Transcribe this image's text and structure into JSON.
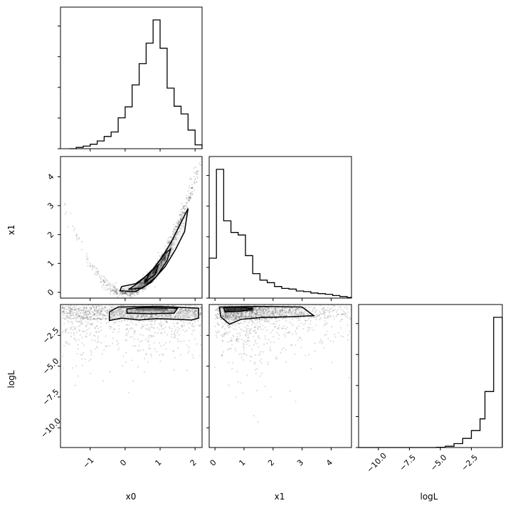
{
  "figure": {
    "type": "corner plot",
    "variables": [
      "x0",
      "x1",
      "logL"
    ]
  },
  "chart_data": [
    {
      "type": "bar",
      "panel": "hist-x0",
      "xlim": [
        -1.85,
        2.2
      ],
      "ylim": [
        0,
        1.0
      ],
      "bins": [
        [
          -1.6,
          0.0
        ],
        [
          -1.4,
          0.01
        ],
        [
          -1.2,
          0.02
        ],
        [
          -1.0,
          0.035
        ],
        [
          -0.8,
          0.06
        ],
        [
          -0.6,
          0.095
        ],
        [
          -0.4,
          0.13
        ],
        [
          -0.2,
          0.24
        ],
        [
          0.0,
          0.325
        ],
        [
          0.2,
          0.495
        ],
        [
          0.4,
          0.66
        ],
        [
          0.6,
          0.82
        ],
        [
          0.8,
          1.0
        ],
        [
          1.0,
          0.78
        ],
        [
          1.2,
          0.47
        ],
        [
          1.4,
          0.33
        ],
        [
          1.6,
          0.27
        ],
        [
          1.8,
          0.145
        ],
        [
          2.0,
          0.03
        ]
      ],
      "bin_width": 0.2,
      "xticks": [
        -1,
        0,
        1,
        2
      ]
    },
    {
      "type": "bar",
      "panel": "hist-x1",
      "xlim": [
        -0.2,
        4.7
      ],
      "ylim": [
        0,
        1.0
      ],
      "bins": [
        [
          -0.2,
          0.31
        ],
        [
          0.05,
          1.0
        ],
        [
          0.3,
          0.6
        ],
        [
          0.55,
          0.51
        ],
        [
          0.8,
          0.49
        ],
        [
          1.05,
          0.33
        ],
        [
          1.3,
          0.19
        ],
        [
          1.55,
          0.14
        ],
        [
          1.8,
          0.12
        ],
        [
          2.05,
          0.09
        ],
        [
          2.3,
          0.075
        ],
        [
          2.55,
          0.07
        ],
        [
          2.8,
          0.055
        ],
        [
          3.05,
          0.05
        ],
        [
          3.3,
          0.04
        ],
        [
          3.55,
          0.035
        ],
        [
          3.8,
          0.03
        ],
        [
          4.05,
          0.02
        ],
        [
          4.3,
          0.012
        ],
        [
          4.55,
          0.005
        ]
      ],
      "bin_width": 0.25,
      "xticks": [
        0,
        1,
        2,
        3,
        4
      ]
    },
    {
      "type": "bar",
      "panel": "hist-logL",
      "xlim": [
        -11.6,
        0.0
      ],
      "ylim": [
        0,
        1.0
      ],
      "bins": [
        [
          -11.6,
          0.0
        ],
        [
          -10.9,
          0.0
        ],
        [
          -10.2,
          0.0
        ],
        [
          -9.5,
          0.0
        ],
        [
          -8.8,
          0.0
        ],
        [
          -8.1,
          0.0
        ],
        [
          -7.4,
          0.0
        ],
        [
          -6.7,
          0.0
        ],
        [
          -6.0,
          0.0
        ],
        [
          -5.3,
          0.002
        ],
        [
          -4.6,
          0.01
        ],
        [
          -3.9,
          0.03
        ],
        [
          -3.2,
          0.07
        ],
        [
          -2.5,
          0.13
        ],
        [
          -1.8,
          0.22
        ],
        [
          -1.4,
          0.43
        ],
        [
          -0.7,
          1.0
        ]
      ],
      "xticks": [
        -10.0,
        -7.5,
        -5.0,
        -2.5
      ]
    },
    {
      "type": "scatter",
      "panel": "x0-vs-x1",
      "xlim": [
        -1.85,
        2.2
      ],
      "ylim": [
        -0.2,
        4.7
      ],
      "curve": "x1 ≈ x0^2",
      "xticks": [
        -1,
        0,
        1,
        2
      ],
      "yticks": [
        0,
        1,
        2,
        3,
        4
      ],
      "contours": [
        [
          [
            -0.15,
            0.05
          ],
          [
            0.3,
            0.03
          ],
          [
            0.75,
            0.35
          ],
          [
            1.15,
            0.9
          ],
          [
            1.45,
            1.5
          ],
          [
            1.7,
            2.1
          ],
          [
            1.8,
            2.9
          ],
          [
            1.55,
            2.3
          ],
          [
            1.3,
            1.7
          ],
          [
            1.05,
            1.2
          ],
          [
            0.7,
            0.65
          ],
          [
            0.3,
            0.3
          ],
          [
            -0.1,
            0.2
          ],
          [
            -0.15,
            0.05
          ]
        ],
        [
          [
            0.1,
            0.1
          ],
          [
            0.5,
            0.15
          ],
          [
            0.9,
            0.55
          ],
          [
            1.2,
            1.1
          ],
          [
            1.3,
            1.5
          ],
          [
            1.1,
            1.3
          ],
          [
            0.8,
            0.8
          ],
          [
            0.4,
            0.35
          ],
          [
            0.1,
            0.1
          ]
        ],
        [
          [
            0.55,
            0.35
          ],
          [
            0.85,
            0.6
          ],
          [
            0.95,
            0.95
          ],
          [
            0.75,
            0.75
          ],
          [
            0.55,
            0.35
          ]
        ]
      ]
    },
    {
      "type": "scatter",
      "panel": "x0-vs-logL",
      "xlim": [
        -1.85,
        2.2
      ],
      "ylim": [
        -11.6,
        0.0
      ],
      "xticks": [
        -1,
        0,
        1,
        2
      ],
      "yticks": [
        -10.0,
        -7.5,
        -5.0,
        -2.5
      ],
      "contours": [
        [
          [
            -0.45,
            -1.3
          ],
          [
            -0.1,
            -1.1
          ],
          [
            0.4,
            -1.25
          ],
          [
            0.9,
            -1.15
          ],
          [
            1.4,
            -1.2
          ],
          [
            1.9,
            -1.25
          ],
          [
            2.1,
            -1.1
          ],
          [
            2.1,
            -0.3
          ],
          [
            1.0,
            -0.15
          ],
          [
            -0.2,
            -0.2
          ],
          [
            -0.45,
            -0.6
          ],
          [
            -0.45,
            -1.3
          ]
        ],
        [
          [
            0.05,
            -0.7
          ],
          [
            0.7,
            -0.75
          ],
          [
            1.4,
            -0.7
          ],
          [
            1.5,
            -0.3
          ],
          [
            0.5,
            -0.25
          ],
          [
            0.05,
            -0.35
          ],
          [
            0.05,
            -0.7
          ]
        ]
      ]
    },
    {
      "type": "scatter",
      "panel": "x1-vs-logL",
      "xlim": [
        -0.2,
        4.7
      ],
      "ylim": [
        -11.6,
        0.0
      ],
      "xticks": [
        0,
        1,
        2,
        3,
        4
      ],
      "yticks": [
        -10.0,
        -7.5,
        -5.0,
        -2.5
      ],
      "contours": [
        [
          [
            0.15,
            -0.2
          ],
          [
            0.2,
            -1.0
          ],
          [
            0.5,
            -1.6
          ],
          [
            0.9,
            -1.2
          ],
          [
            1.6,
            -1.05
          ],
          [
            2.6,
            -1.0
          ],
          [
            3.4,
            -0.9
          ],
          [
            3.0,
            -0.2
          ],
          [
            1.5,
            -0.15
          ],
          [
            0.15,
            -0.2
          ]
        ],
        [
          [
            0.3,
            -0.25
          ],
          [
            0.35,
            -0.6
          ],
          [
            0.9,
            -0.55
          ],
          [
            1.3,
            -0.35
          ],
          [
            0.9,
            -0.2
          ],
          [
            0.3,
            -0.25
          ]
        ]
      ]
    }
  ],
  "axis_labels": {
    "x0": "x0",
    "x1": "x1",
    "logL": "logL"
  },
  "tick_labels": {
    "x0": [
      "−1",
      "0",
      "1",
      "2"
    ],
    "x1": [
      "0",
      "1",
      "2",
      "3",
      "4"
    ],
    "logL": [
      "−10.0",
      "−7.5",
      "−5.0",
      "−2.5"
    ]
  }
}
